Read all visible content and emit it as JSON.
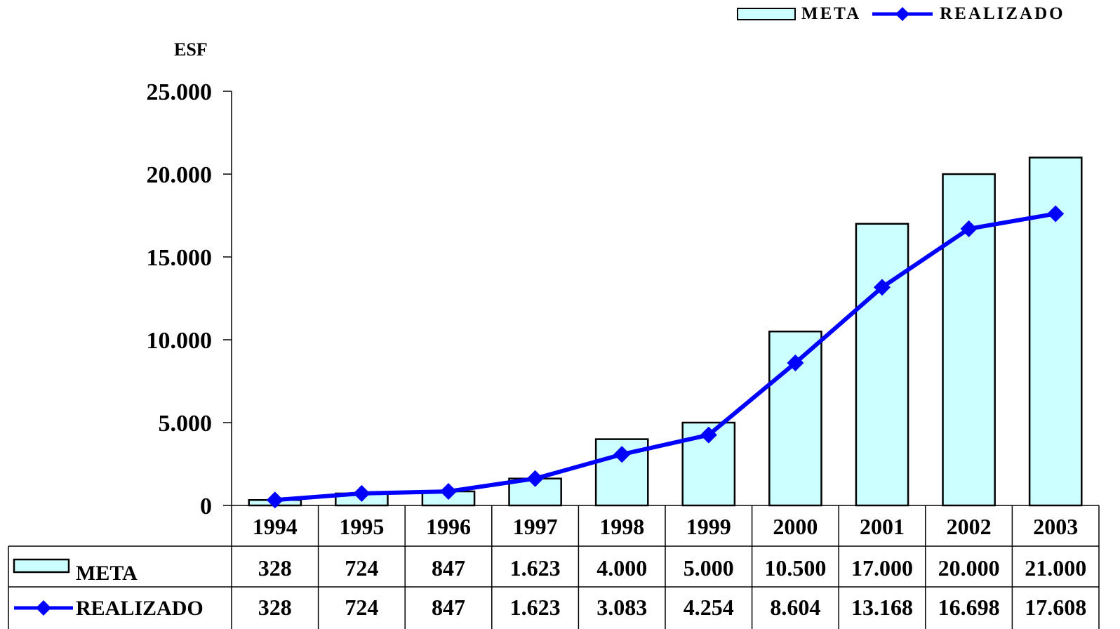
{
  "chart_data": {
    "type": "bar",
    "ylabel": "ESF",
    "ylim": [
      0,
      25000
    ],
    "yticks": [
      "0",
      "5.000",
      "10.000",
      "15.000",
      "20.000",
      "25.000"
    ],
    "categories": [
      "1994",
      "1995",
      "1996",
      "1997",
      "1998",
      "1999",
      "2000",
      "2001",
      "2002",
      "2003"
    ],
    "series": [
      {
        "name": "META",
        "type": "bar",
        "values": [
          328,
          724,
          847,
          1623,
          4000,
          5000,
          10500,
          17000,
          20000,
          21000
        ],
        "labels": [
          "328",
          "724",
          "847",
          "1.623",
          "4.000",
          "5.000",
          "10.500",
          "17.000",
          "20.000",
          "21.000"
        ],
        "color": "#ccffff"
      },
      {
        "name": "REALIZADO",
        "type": "line",
        "values": [
          328,
          724,
          847,
          1623,
          3083,
          4254,
          8604,
          13168,
          16698,
          17608
        ],
        "labels": [
          "328",
          "724",
          "847",
          "1.623",
          "3.083",
          "4.254",
          "8.604",
          "13.168",
          "16.698",
          "17.608"
        ],
        "color": "#0000ff",
        "marker": "diamond"
      }
    ],
    "legend": "top-right",
    "grid": false,
    "data_table": true
  }
}
